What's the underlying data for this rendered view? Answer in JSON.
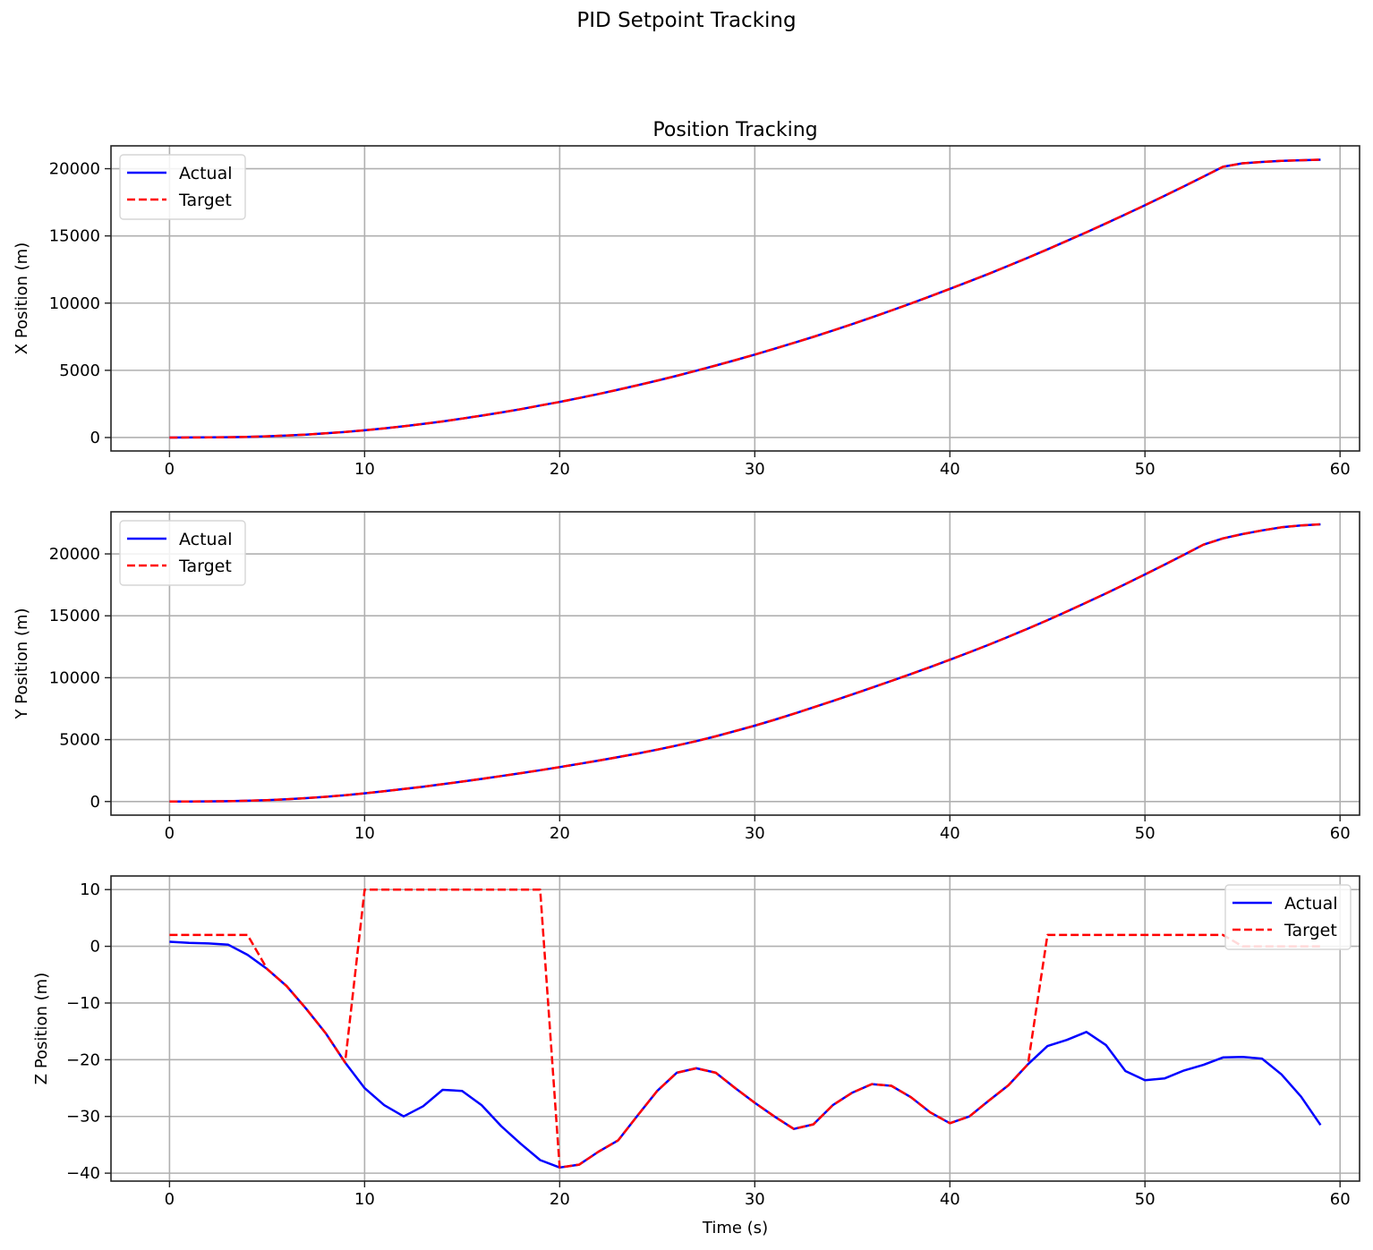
{
  "figure": {
    "suptitle": "PID Setpoint Tracking",
    "colors": {
      "actual": "#0000ff",
      "target": "#ff0000",
      "grid": "#b0b0b0",
      "axes": "#222222"
    }
  },
  "chart_data": [
    {
      "type": "line",
      "title": "Position Tracking",
      "xlabel": "",
      "ylabel": "X Position (m)",
      "xlim": [
        -3,
        61
      ],
      "ylim": [
        -1000,
        21700
      ],
      "xticks": [
        0,
        10,
        20,
        30,
        40,
        50,
        60
      ],
      "yticks": [
        0,
        5000,
        10000,
        15000,
        20000
      ],
      "grid": true,
      "legend": {
        "position": "upper left",
        "entries": [
          "Actual",
          "Target"
        ]
      },
      "x": [
        0,
        1,
        2,
        3,
        4,
        5,
        6,
        7,
        8,
        9,
        10,
        11,
        12,
        13,
        14,
        15,
        16,
        17,
        18,
        19,
        20,
        21,
        22,
        23,
        24,
        25,
        26,
        27,
        28,
        29,
        30,
        31,
        32,
        33,
        34,
        35,
        36,
        37,
        38,
        39,
        40,
        41,
        42,
        43,
        44,
        45,
        46,
        47,
        48,
        49,
        50,
        51,
        52,
        53,
        54,
        55,
        56,
        57,
        58,
        59
      ],
      "series": [
        {
          "name": "Actual",
          "style": "solid",
          "values": [
            0,
            2,
            10,
            25,
            50,
            90,
            150,
            220,
            310,
            410,
            540,
            680,
            840,
            1010,
            1200,
            1410,
            1630,
            1860,
            2110,
            2380,
            2650,
            2940,
            3240,
            3560,
            3890,
            4230,
            4590,
            4970,
            5360,
            5760,
            6170,
            6600,
            7040,
            7490,
            7960,
            8440,
            8940,
            9450,
            9970,
            10510,
            11060,
            11620,
            12190,
            12780,
            13380,
            14000,
            14630,
            15270,
            15930,
            16600,
            17280,
            17980,
            18690,
            19410,
            20140,
            20400,
            20500,
            20580,
            20630,
            20670
          ]
        },
        {
          "name": "Target",
          "style": "dashed",
          "values": [
            0,
            2,
            10,
            25,
            50,
            90,
            150,
            220,
            310,
            410,
            540,
            680,
            840,
            1010,
            1200,
            1410,
            1630,
            1860,
            2110,
            2380,
            2650,
            2940,
            3240,
            3560,
            3890,
            4230,
            4590,
            4970,
            5360,
            5760,
            6170,
            6600,
            7040,
            7490,
            7960,
            8440,
            8940,
            9450,
            9970,
            10510,
            11060,
            11620,
            12190,
            12780,
            13380,
            14000,
            14630,
            15270,
            15930,
            16600,
            17280,
            17980,
            18690,
            19410,
            20140,
            20400,
            20500,
            20580,
            20630,
            20670
          ]
        }
      ]
    },
    {
      "type": "line",
      "title": "",
      "xlabel": "",
      "ylabel": "Y Position (m)",
      "xlim": [
        -3,
        61
      ],
      "ylim": [
        -1100,
        23400
      ],
      "xticks": [
        0,
        10,
        20,
        30,
        40,
        50,
        60
      ],
      "yticks": [
        0,
        5000,
        10000,
        15000,
        20000
      ],
      "grid": true,
      "legend": {
        "position": "upper left",
        "entries": [
          "Actual",
          "Target"
        ]
      },
      "x": [
        0,
        1,
        2,
        3,
        4,
        5,
        6,
        7,
        8,
        9,
        10,
        11,
        12,
        13,
        14,
        15,
        16,
        17,
        18,
        19,
        20,
        21,
        22,
        23,
        24,
        25,
        26,
        27,
        28,
        29,
        30,
        31,
        32,
        33,
        34,
        35,
        36,
        37,
        38,
        39,
        40,
        41,
        42,
        43,
        44,
        45,
        46,
        47,
        48,
        49,
        50,
        51,
        52,
        53,
        54,
        55,
        56,
        57,
        58,
        59
      ],
      "series": [
        {
          "name": "Actual",
          "style": "solid",
          "values": [
            0,
            2,
            10,
            30,
            60,
            110,
            180,
            270,
            380,
            510,
            660,
            830,
            1010,
            1200,
            1400,
            1610,
            1830,
            2060,
            2290,
            2530,
            2780,
            3040,
            3310,
            3590,
            3880,
            4190,
            4520,
            4880,
            5270,
            5690,
            6130,
            6600,
            7090,
            7600,
            8120,
            8650,
            9190,
            9740,
            10300,
            10870,
            11450,
            12050,
            12670,
            13310,
            13970,
            14650,
            15350,
            16070,
            16810,
            17570,
            18340,
            19130,
            19930,
            20750,
            21250,
            21600,
            21900,
            22150,
            22300,
            22390
          ]
        },
        {
          "name": "Target",
          "style": "dashed",
          "values": [
            0,
            2,
            10,
            30,
            60,
            110,
            180,
            270,
            380,
            510,
            660,
            830,
            1010,
            1200,
            1400,
            1610,
            1830,
            2060,
            2290,
            2530,
            2780,
            3040,
            3310,
            3590,
            3880,
            4190,
            4520,
            4880,
            5270,
            5690,
            6130,
            6600,
            7090,
            7600,
            8120,
            8650,
            9190,
            9740,
            10300,
            10870,
            11450,
            12050,
            12670,
            13310,
            13970,
            14650,
            15350,
            16070,
            16810,
            17570,
            18340,
            19130,
            19930,
            20750,
            21250,
            21600,
            21900,
            22150,
            22300,
            22390
          ]
        }
      ]
    },
    {
      "type": "line",
      "title": "",
      "xlabel": "Time (s)",
      "ylabel": "Z Position (m)",
      "xlim": [
        -3,
        61
      ],
      "ylim": [
        -41.4,
        12.4
      ],
      "xticks": [
        0,
        10,
        20,
        30,
        40,
        50,
        60
      ],
      "yticks": [
        -40,
        -30,
        -20,
        -10,
        0,
        10
      ],
      "grid": true,
      "legend": {
        "position": "upper right",
        "entries": [
          "Actual",
          "Target"
        ]
      },
      "x": [
        0,
        1,
        2,
        3,
        4,
        5,
        6,
        7,
        8,
        9,
        10,
        11,
        12,
        13,
        14,
        15,
        16,
        17,
        18,
        19,
        20,
        21,
        22,
        23,
        24,
        25,
        26,
        27,
        28,
        29,
        30,
        31,
        32,
        33,
        34,
        35,
        36,
        37,
        38,
        39,
        40,
        41,
        42,
        43,
        44,
        45,
        46,
        47,
        48,
        49,
        50,
        51,
        52,
        53,
        54,
        55,
        56,
        57,
        58,
        59
      ],
      "series": [
        {
          "name": "Actual",
          "style": "solid",
          "values": [
            0.8,
            0.6,
            0.5,
            0.3,
            -1.5,
            -4,
            -7,
            -11,
            -15.3,
            -20.5,
            -25,
            -28,
            -30,
            -28.2,
            -25.3,
            -25.5,
            -28,
            -31.7,
            -34.8,
            -37.7,
            -39,
            -38.5,
            -36.2,
            -34.2,
            -29.8,
            -25.5,
            -22.3,
            -21.5,
            -22.3,
            -25,
            -27.6,
            -30,
            -32.2,
            -31.4,
            -28,
            -25.8,
            -24.3,
            -24.6,
            -26.6,
            -29.3,
            -31.2,
            -30,
            -27.2,
            -24.5,
            -20.8,
            -17.6,
            -16.5,
            -15.1,
            -17.4,
            -22,
            -23.6,
            -23.3,
            -21.9,
            -20.9,
            -19.6,
            -19.5,
            -19.8,
            -22.6,
            -26.5,
            -31.5
          ]
        },
        {
          "name": "Target",
          "style": "dashed",
          "values": [
            2,
            2,
            2,
            2,
            2,
            -4,
            -7,
            -11,
            -15.3,
            -20.5,
            10,
            10,
            10,
            10,
            10,
            10,
            10,
            10,
            10,
            10,
            -39,
            -38.5,
            -36.2,
            -34.2,
            -29.8,
            -25.5,
            -22.3,
            -21.5,
            -22.3,
            -25,
            -27.6,
            -30,
            -32.2,
            -31.4,
            -28,
            -25.8,
            -24.3,
            -24.6,
            -26.6,
            -29.3,
            -31.2,
            -30,
            -27.2,
            -24.5,
            -20.8,
            2,
            2,
            2,
            2,
            2,
            2,
            2,
            2,
            2,
            2,
            0,
            0,
            0,
            0,
            0
          ]
        }
      ]
    }
  ]
}
